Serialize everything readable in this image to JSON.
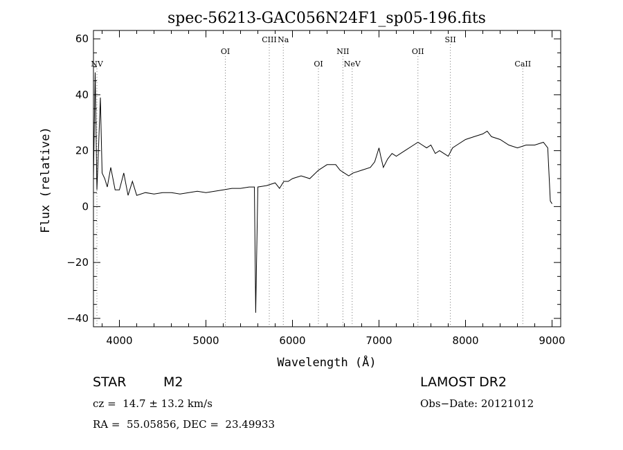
{
  "chart_data": {
    "type": "line",
    "title": "spec-56213-GAC056N24F1_sp05-196.fits",
    "xlabel": "Wavelength (Å)",
    "ylabel": "Flux (relative)",
    "xlim": [
      3700,
      9100
    ],
    "ylim": [
      -43,
      63
    ],
    "xticks": [
      4000,
      5000,
      6000,
      7000,
      8000,
      9000
    ],
    "yticks": [
      -40,
      -20,
      0,
      20,
      40,
      60
    ],
    "series": [
      {
        "x": [
          3700,
          3720,
          3740,
          3760,
          3780,
          3800,
          3830,
          3860,
          3900,
          3950,
          4000,
          4050,
          4100,
          4150,
          4200,
          4300,
          4400,
          4500,
          4600,
          4700,
          4800,
          4900,
          5000,
          5100,
          5200,
          5300,
          5400,
          5500,
          5560,
          5575,
          5585,
          5600,
          5700,
          5800,
          5850,
          5900,
          5950,
          6000,
          6100,
          6200,
          6300,
          6350,
          6400,
          6500,
          6550,
          6600,
          6650,
          6700,
          6800,
          6900,
          6950,
          7000,
          7020,
          7050,
          7100,
          7150,
          7200,
          7300,
          7400,
          7450,
          7500,
          7550,
          7600,
          7650,
          7700,
          7750,
          7800,
          7850,
          7900,
          8000,
          8100,
          8200,
          8250,
          8300,
          8400,
          8500,
          8600,
          8700,
          8800,
          8900,
          8950,
          8980,
          9000
        ],
        "y": [
          10,
          48,
          6,
          22,
          39,
          12,
          10,
          7,
          14,
          6,
          6,
          12,
          4,
          9,
          4,
          5,
          4.5,
          5,
          5,
          4.5,
          5,
          5.5,
          5,
          5.5,
          6,
          6.5,
          6.5,
          7,
          7,
          -38,
          -20,
          7,
          7.5,
          8.5,
          6.5,
          9,
          9,
          10,
          11,
          10,
          13,
          14,
          15,
          15,
          13,
          12,
          11,
          12,
          13,
          14,
          16,
          21,
          18,
          14,
          17,
          19,
          18,
          20,
          22,
          23,
          22,
          21,
          22,
          19,
          20,
          19,
          18,
          21,
          22,
          24,
          25,
          26,
          27,
          25,
          24,
          22,
          21,
          22,
          22,
          23,
          21,
          2,
          1
        ]
      }
    ],
    "annotations": [
      {
        "label": "NV",
        "x": 3740,
        "row": 3
      },
      {
        "label": "OI",
        "x": 5224,
        "row": 2
      },
      {
        "label": "CIII",
        "x": 5732,
        "row": 1
      },
      {
        "label": "Na",
        "x": 5894,
        "row": 1
      },
      {
        "label": "OI",
        "x": 6300,
        "row": 3
      },
      {
        "label": "NII",
        "x": 6583,
        "row": 2
      },
      {
        "label": "NeV",
        "x": 6690,
        "row": 3
      },
      {
        "label": "OII",
        "x": 7450,
        "row": 2
      },
      {
        "label": "SII",
        "x": 7825,
        "row": 1
      },
      {
        "label": "CaII",
        "x": 8662,
        "row": 3
      }
    ]
  },
  "info": {
    "object_type": "STAR",
    "subclass": "M2",
    "survey": "LAMOST DR2",
    "redshift": "cz =  14.7 ± 13.2 km/s",
    "obs_date": "Obs−Date: 20121012",
    "coordinates": "RA =  55.05856, DEC =  23.49933"
  }
}
